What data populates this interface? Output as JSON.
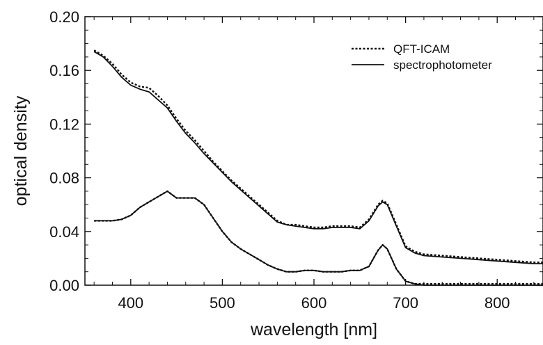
{
  "chart_data": {
    "type": "line",
    "title": "",
    "xlabel": "wavelength [nm]",
    "ylabel": "optical density",
    "xlim": [
      350,
      850
    ],
    "ylim": [
      0.0,
      0.2
    ],
    "x_ticks": [
      400,
      500,
      600,
      700,
      800
    ],
    "x_tick_labels": [
      "400",
      "500",
      "600",
      "700",
      "800"
    ],
    "y_ticks": [
      0.0,
      0.04,
      0.08,
      0.12,
      0.16,
      0.2
    ],
    "y_tick_labels": [
      "0.00",
      "0.04",
      "0.08",
      "0.12",
      "0.16",
      "0.20"
    ],
    "grid": false,
    "legend_position": "top-right",
    "legend": [
      {
        "label": "QFT-ICAM",
        "style": "dotted"
      },
      {
        "label": "spectrophotometer",
        "style": "solid"
      }
    ],
    "series": [
      {
        "name": "QFT-ICAM",
        "curve": "upper",
        "style": "dotted",
        "x": [
          360,
          370,
          380,
          390,
          400,
          410,
          420,
          430,
          440,
          450,
          460,
          470,
          480,
          490,
          500,
          510,
          520,
          530,
          540,
          550,
          560,
          570,
          580,
          590,
          600,
          610,
          620,
          630,
          640,
          650,
          660,
          670,
          675,
          680,
          690,
          700,
          710,
          720,
          740,
          760,
          780,
          800,
          820,
          840,
          850
        ],
        "y": [
          0.175,
          0.171,
          0.165,
          0.157,
          0.151,
          0.148,
          0.147,
          0.141,
          0.134,
          0.124,
          0.115,
          0.108,
          0.1,
          0.092,
          0.085,
          0.078,
          0.072,
          0.066,
          0.06,
          0.054,
          0.048,
          0.045,
          0.045,
          0.044,
          0.043,
          0.043,
          0.044,
          0.044,
          0.044,
          0.043,
          0.049,
          0.06,
          0.063,
          0.061,
          0.045,
          0.029,
          0.025,
          0.023,
          0.022,
          0.021,
          0.02,
          0.019,
          0.018,
          0.017,
          0.017
        ]
      },
      {
        "name": "spectrophotometer",
        "curve": "upper",
        "style": "solid",
        "x": [
          360,
          370,
          380,
          390,
          400,
          410,
          420,
          430,
          440,
          450,
          460,
          470,
          480,
          490,
          500,
          510,
          520,
          530,
          540,
          550,
          560,
          570,
          580,
          590,
          600,
          610,
          620,
          630,
          640,
          650,
          660,
          670,
          675,
          680,
          690,
          700,
          710,
          720,
          740,
          760,
          780,
          800,
          820,
          840,
          850
        ],
        "y": [
          0.174,
          0.17,
          0.163,
          0.155,
          0.149,
          0.146,
          0.144,
          0.138,
          0.132,
          0.122,
          0.113,
          0.106,
          0.098,
          0.091,
          0.084,
          0.077,
          0.071,
          0.065,
          0.059,
          0.053,
          0.047,
          0.045,
          0.044,
          0.043,
          0.042,
          0.042,
          0.043,
          0.043,
          0.043,
          0.042,
          0.048,
          0.059,
          0.062,
          0.06,
          0.044,
          0.028,
          0.024,
          0.022,
          0.021,
          0.02,
          0.019,
          0.018,
          0.017,
          0.016,
          0.016
        ]
      },
      {
        "name": "QFT-ICAM",
        "curve": "lower",
        "style": "dotted",
        "x": [
          360,
          370,
          380,
          390,
          400,
          410,
          420,
          430,
          440,
          450,
          460,
          470,
          480,
          490,
          500,
          510,
          520,
          530,
          540,
          550,
          560,
          570,
          580,
          590,
          600,
          610,
          620,
          630,
          640,
          650,
          660,
          670,
          675,
          680,
          690,
          700,
          710,
          720,
          740,
          760,
          780,
          800,
          820,
          840,
          850
        ],
        "y": [
          0.048,
          0.048,
          0.048,
          0.049,
          0.052,
          0.058,
          0.062,
          0.066,
          0.07,
          0.065,
          0.065,
          0.065,
          0.06,
          0.05,
          0.04,
          0.032,
          0.027,
          0.023,
          0.019,
          0.015,
          0.012,
          0.01,
          0.01,
          0.011,
          0.011,
          0.01,
          0.01,
          0.01,
          0.011,
          0.011,
          0.014,
          0.026,
          0.03,
          0.027,
          0.012,
          0.003,
          0.001,
          0.001,
          0.001,
          0.001,
          0.001,
          0.001,
          0.001,
          0.001,
          0.001
        ]
      },
      {
        "name": "spectrophotometer",
        "curve": "lower",
        "style": "solid",
        "x": [
          360,
          370,
          380,
          390,
          400,
          410,
          420,
          430,
          440,
          450,
          460,
          470,
          480,
          490,
          500,
          510,
          520,
          530,
          540,
          550,
          560,
          570,
          580,
          590,
          600,
          610,
          620,
          630,
          640,
          650,
          660,
          670,
          675,
          680,
          690,
          700,
          710,
          720,
          740,
          760,
          780,
          800,
          820,
          840,
          850
        ],
        "y": [
          0.048,
          0.048,
          0.048,
          0.049,
          0.052,
          0.058,
          0.062,
          0.066,
          0.07,
          0.065,
          0.065,
          0.065,
          0.06,
          0.05,
          0.04,
          0.032,
          0.027,
          0.023,
          0.019,
          0.015,
          0.012,
          0.01,
          0.01,
          0.011,
          0.011,
          0.01,
          0.01,
          0.01,
          0.011,
          0.011,
          0.014,
          0.026,
          0.03,
          0.027,
          0.012,
          0.003,
          0.001,
          0.0,
          0.0,
          0.0,
          0.0,
          0.0,
          0.0,
          0.0,
          0.0
        ]
      }
    ]
  }
}
